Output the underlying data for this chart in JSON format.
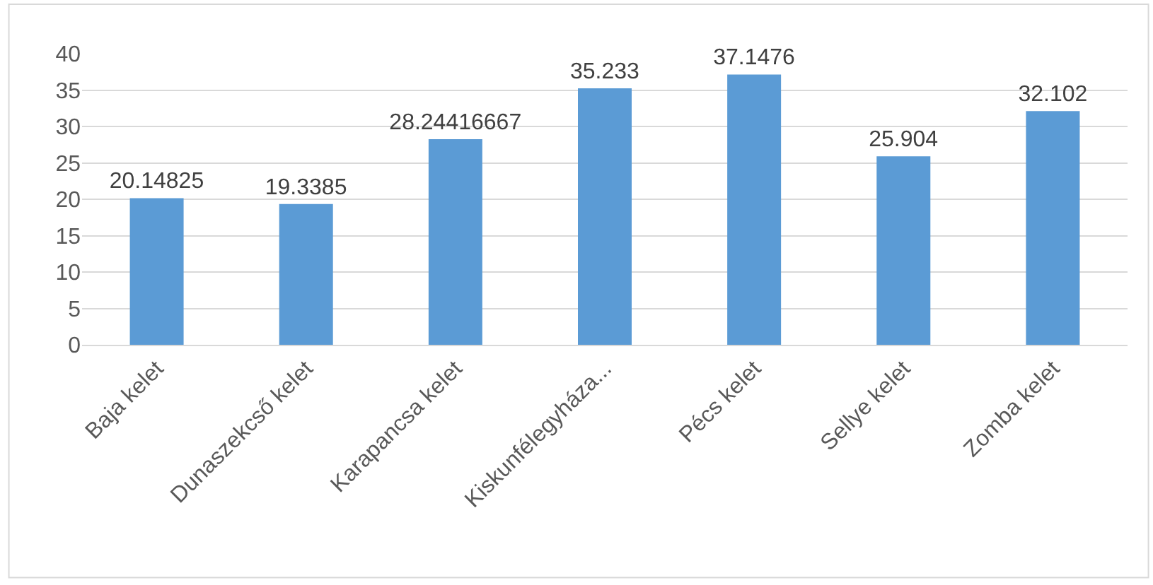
{
  "chart_data": {
    "type": "bar",
    "categories": [
      "Baja kelet",
      "Dunaszekcső kelet",
      "Karapancsa kelet",
      "Kiskunfélegyháza...",
      "Pécs kelet",
      "Sellye kelet",
      "Zomba kelet"
    ],
    "values": [
      20.14825,
      19.3385,
      28.24416667,
      35.233,
      37.1476,
      25.904,
      32.102
    ],
    "color": "#5b9bd5",
    "ylim": [
      0,
      40
    ],
    "yticks": [
      0,
      5,
      10,
      15,
      20,
      25,
      30,
      35,
      40
    ],
    "grid": "y",
    "data_labels": true,
    "legend": false
  }
}
